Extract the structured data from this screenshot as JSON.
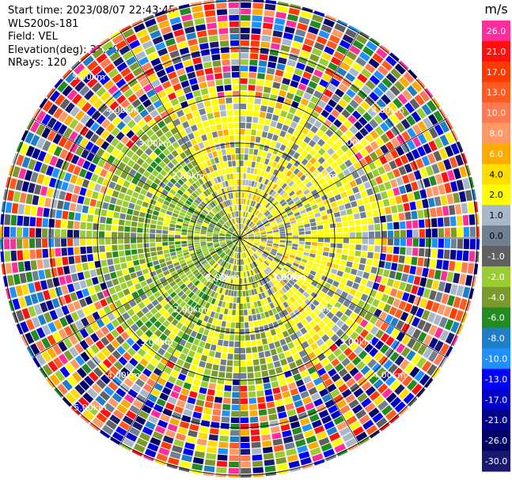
{
  "header": {
    "start_time": "Start time: 2023/08/07 22:43:45",
    "site": "WLS200s-181",
    "field": "Field: VEL",
    "elevation": "Elevation(deg): 35.30",
    "nrays": "NRays: 120"
  },
  "chart_data": {
    "type": "heatmap",
    "projection": "polar-ppi",
    "rays": 120,
    "range_rings_km": [
      1.0,
      2.0,
      3.0,
      4.0,
      5.0
    ],
    "range_labels_left": [
      "5.00km",
      "4.00km",
      "3.00km",
      "2.00km",
      "1.00km"
    ],
    "range_labels_right": [
      "1.00km",
      "2.00km",
      "3.00km",
      "4.00km"
    ],
    "range_labels_lower_left": [
      "1.00km",
      "2.00km",
      "3.00km",
      "4.00km",
      "5.00km"
    ],
    "range_labels_lower_right": [
      "1.00km",
      "2.00km",
      "3.00km",
      "4.00km"
    ],
    "colorbar": {
      "unit": "m/s",
      "ticks": [
        "26.0",
        "21.0",
        "17.0",
        "13.0",
        "10.0",
        "8.0",
        "6.0",
        "4.0",
        "2.0",
        "1.0",
        "0.0",
        "-1.0",
        "-2.0",
        "-4.0",
        "-6.0",
        "-8.0",
        "-10.0",
        "-13.0",
        "-17.0",
        "-21.0",
        "-26.0",
        "-30.0"
      ],
      "colors": [
        "#FF2E9C",
        "#FF1010",
        "#FF3A00",
        "#FF5A20",
        "#FF7A50",
        "#FF9966",
        "#FFAA00",
        "#FFDD00",
        "#FFFF00",
        "#A8B8C8",
        "#708090",
        "#606060",
        "#9ACD32",
        "#7B9A2B",
        "#228B22",
        "#1E7FC8",
        "#1E90FF",
        "#0000FF",
        "#0000CD",
        "#00008B",
        "#000066",
        "#191970"
      ]
    }
  }
}
